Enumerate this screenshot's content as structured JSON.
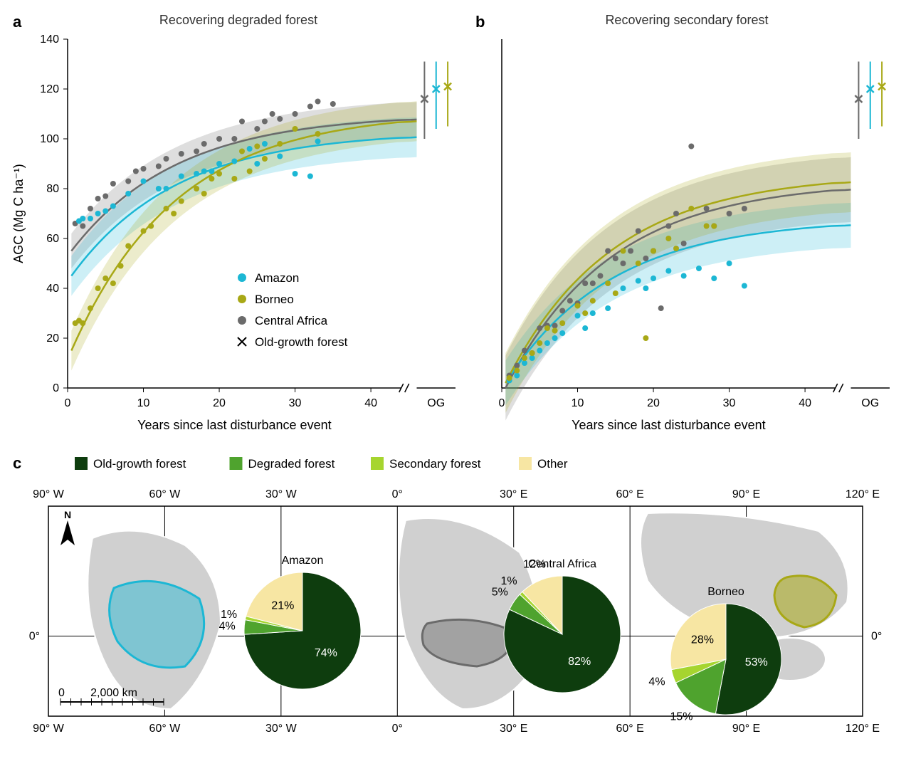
{
  "panel_a": {
    "label": "a",
    "title": "Recovering degraded forest",
    "ylabel": "AGC (Mg C ha⁻¹)",
    "xlabel": "Years since last disturbance event",
    "xlim": [
      0,
      45
    ],
    "ylim": [
      0,
      140
    ],
    "xticks": [
      0,
      10,
      20,
      30,
      40
    ],
    "yticks": [
      0,
      20,
      40,
      60,
      80,
      100,
      120,
      140
    ],
    "og_tick": "OG",
    "colors": {
      "amazon": "#1cb7d4",
      "borneo": "#a8a816",
      "cafrica": "#6b6b6b"
    },
    "series": {
      "amazon": {
        "curve_start": [
          0.5,
          45
        ],
        "curve_end": [
          45,
          103
        ],
        "band_width": 8,
        "points": [
          [
            1.5,
            67
          ],
          [
            2,
            68
          ],
          [
            3,
            68
          ],
          [
            4,
            70
          ],
          [
            5,
            71
          ],
          [
            6,
            73
          ],
          [
            8,
            78
          ],
          [
            10,
            83
          ],
          [
            12,
            80
          ],
          [
            13,
            80
          ],
          [
            15,
            85
          ],
          [
            17,
            86
          ],
          [
            18,
            87
          ],
          [
            19,
            87
          ],
          [
            20,
            90
          ],
          [
            22,
            91
          ],
          [
            24,
            96
          ],
          [
            25,
            90
          ],
          [
            26,
            98
          ],
          [
            28,
            93
          ],
          [
            30,
            86
          ],
          [
            32,
            85
          ],
          [
            33,
            99
          ]
        ]
      },
      "borneo": {
        "curve_start": [
          0.5,
          15
        ],
        "curve_end": [
          45,
          111
        ],
        "band_width": 8,
        "points": [
          [
            1,
            26
          ],
          [
            1.5,
            27
          ],
          [
            2,
            26
          ],
          [
            3,
            32
          ],
          [
            4,
            40
          ],
          [
            5,
            44
          ],
          [
            6,
            42
          ],
          [
            7,
            49
          ],
          [
            8,
            57
          ],
          [
            10,
            63
          ],
          [
            11,
            65
          ],
          [
            13,
            72
          ],
          [
            14,
            70
          ],
          [
            15,
            75
          ],
          [
            17,
            80
          ],
          [
            18,
            78
          ],
          [
            19,
            84
          ],
          [
            20,
            86
          ],
          [
            22,
            84
          ],
          [
            23,
            95
          ],
          [
            24,
            87
          ],
          [
            25,
            97
          ],
          [
            26,
            92
          ],
          [
            28,
            98
          ],
          [
            30,
            104
          ],
          [
            33,
            102
          ]
        ]
      },
      "cafrica": {
        "curve_start": [
          0.5,
          55
        ],
        "curve_end": [
          45,
          110
        ],
        "band_width": 7,
        "points": [
          [
            1,
            66
          ],
          [
            2,
            65
          ],
          [
            3,
            72
          ],
          [
            4,
            76
          ],
          [
            5,
            77
          ],
          [
            6,
            82
          ],
          [
            8,
            83
          ],
          [
            9,
            87
          ],
          [
            10,
            88
          ],
          [
            12,
            89
          ],
          [
            13,
            92
          ],
          [
            15,
            94
          ],
          [
            17,
            95
          ],
          [
            18,
            98
          ],
          [
            20,
            100
          ],
          [
            22,
            100
          ],
          [
            23,
            107
          ],
          [
            25,
            104
          ],
          [
            26,
            107
          ],
          [
            27,
            110
          ],
          [
            28,
            108
          ],
          [
            30,
            110
          ],
          [
            32,
            113
          ],
          [
            33,
            115
          ],
          [
            35,
            114
          ]
        ]
      }
    },
    "og_markers": {
      "cafrica": {
        "x": 46,
        "y": 116,
        "lo": 100,
        "hi": 131
      },
      "amazon": {
        "x": 47.5,
        "y": 120,
        "lo": 104,
        "hi": 131
      },
      "borneo": {
        "x": 49,
        "y": 121,
        "lo": 105,
        "hi": 131
      }
    },
    "legend": [
      {
        "label": "Amazon",
        "color": "#1cb7d4",
        "marker": "dot"
      },
      {
        "label": "Borneo",
        "color": "#a8a816",
        "marker": "dot"
      },
      {
        "label": "Central Africa",
        "color": "#6b6b6b",
        "marker": "dot"
      },
      {
        "label": "Old-growth forest",
        "color": "#000000",
        "marker": "x"
      }
    ]
  },
  "panel_b": {
    "label": "b",
    "title": "Recovering secondary forest",
    "xlabel": "Years since last disturbance event",
    "xlim": [
      0,
      45
    ],
    "ylim": [
      0,
      140
    ],
    "xticks": [
      0,
      10,
      20,
      30,
      40
    ],
    "og_tick": "OG",
    "series": {
      "amazon": {
        "curve_start": [
          0.5,
          2
        ],
        "curve_end": [
          45,
          68
        ],
        "band_width": 9,
        "points": [
          [
            1,
            3
          ],
          [
            2,
            5
          ],
          [
            3,
            10
          ],
          [
            4,
            12
          ],
          [
            5,
            15
          ],
          [
            6,
            18
          ],
          [
            7,
            20
          ],
          [
            8,
            22
          ],
          [
            10,
            29
          ],
          [
            11,
            24
          ],
          [
            12,
            30
          ],
          [
            14,
            32
          ],
          [
            16,
            40
          ],
          [
            18,
            43
          ],
          [
            19,
            40
          ],
          [
            20,
            44
          ],
          [
            22,
            47
          ],
          [
            24,
            45
          ],
          [
            26,
            48
          ],
          [
            28,
            44
          ],
          [
            30,
            50
          ],
          [
            32,
            41
          ]
        ]
      },
      "borneo": {
        "curve_start": [
          0.5,
          2
        ],
        "curve_end": [
          45,
          86
        ],
        "band_width": 12,
        "points": [
          [
            1,
            4
          ],
          [
            2,
            7
          ],
          [
            3,
            12
          ],
          [
            4,
            14
          ],
          [
            5,
            18
          ],
          [
            6,
            24
          ],
          [
            7,
            23
          ],
          [
            8,
            26
          ],
          [
            10,
            33
          ],
          [
            11,
            30
          ],
          [
            12,
            35
          ],
          [
            14,
            42
          ],
          [
            15,
            38
          ],
          [
            16,
            55
          ],
          [
            18,
            50
          ],
          [
            19,
            20
          ],
          [
            20,
            55
          ],
          [
            22,
            60
          ],
          [
            23,
            56
          ],
          [
            25,
            72
          ],
          [
            27,
            65
          ],
          [
            28,
            65
          ]
        ]
      },
      "cafrica": {
        "curve_start": [
          0.5,
          0
        ],
        "curve_end": [
          45,
          83
        ],
        "band_width": 13,
        "points": [
          [
            1,
            5
          ],
          [
            2,
            9
          ],
          [
            3,
            15
          ],
          [
            4,
            14
          ],
          [
            5,
            24
          ],
          [
            6,
            25
          ],
          [
            7,
            25
          ],
          [
            8,
            31
          ],
          [
            9,
            35
          ],
          [
            10,
            34
          ],
          [
            11,
            42
          ],
          [
            12,
            42
          ],
          [
            13,
            45
          ],
          [
            14,
            55
          ],
          [
            15,
            52
          ],
          [
            16,
            50
          ],
          [
            17,
            55
          ],
          [
            18,
            63
          ],
          [
            19,
            52
          ],
          [
            20,
            55
          ],
          [
            21,
            32
          ],
          [
            22,
            65
          ],
          [
            23,
            70
          ],
          [
            24,
            58
          ],
          [
            25,
            97
          ],
          [
            27,
            72
          ],
          [
            28,
            65
          ],
          [
            30,
            70
          ],
          [
            32,
            72
          ]
        ]
      }
    },
    "og_markers": {
      "cafrica": {
        "x": 46,
        "y": 116,
        "lo": 100,
        "hi": 131
      },
      "amazon": {
        "x": 47.5,
        "y": 120,
        "lo": 104,
        "hi": 131
      },
      "borneo": {
        "x": 49,
        "y": 121,
        "lo": 105,
        "hi": 131
      }
    }
  },
  "panel_c": {
    "label": "c",
    "legend": [
      {
        "label": "Old-growth forest",
        "color": "#0e3d0e"
      },
      {
        "label": "Degraded forest",
        "color": "#4fa32e"
      },
      {
        "label": "Secondary forest",
        "color": "#a6d52f"
      },
      {
        "label": "Other",
        "color": "#f7e6a3"
      }
    ],
    "lon_ticks": [
      "90° W",
      "60° W",
      "30° W",
      "0°",
      "30° E",
      "60° E",
      "90° E",
      "120° E"
    ],
    "lat_tick": "0°",
    "scale_label": "2,000 km",
    "scale_zero": "0",
    "pies": {
      "amazon": {
        "title": "Amazon",
        "slices": [
          {
            "label": "74%",
            "value": 74,
            "color": "#0e3d0e"
          },
          {
            "label": "4%",
            "value": 4,
            "color": "#4fa32e"
          },
          {
            "label": "1%",
            "value": 1,
            "color": "#a6d52f"
          },
          {
            "label": "21%",
            "value": 21,
            "color": "#f7e6a3"
          }
        ]
      },
      "cafrica": {
        "title": "Central Africa",
        "slices": [
          {
            "label": "82%",
            "value": 82,
            "color": "#0e3d0e"
          },
          {
            "label": "5%",
            "value": 5,
            "color": "#4fa32e"
          },
          {
            "label": "1%",
            "value": 1,
            "color": "#a6d52f"
          },
          {
            "label": "12%",
            "value": 12,
            "color": "#f7e6a3"
          }
        ]
      },
      "borneo": {
        "title": "Borneo",
        "slices": [
          {
            "label": "53%",
            "value": 53,
            "color": "#0e3d0e"
          },
          {
            "label": "15%",
            "value": 15,
            "color": "#4fa32e"
          },
          {
            "label": "4%",
            "value": 4,
            "color": "#a6d52f"
          },
          {
            "label": "28%",
            "value": 28,
            "color": "#f7e6a3"
          }
        ]
      }
    },
    "region_colors": {
      "amazon": "#1cb7d4",
      "cafrica": "#6b6b6b",
      "borneo": "#a8a816",
      "land": "#d0d0d0",
      "water": "#ffffff"
    }
  }
}
